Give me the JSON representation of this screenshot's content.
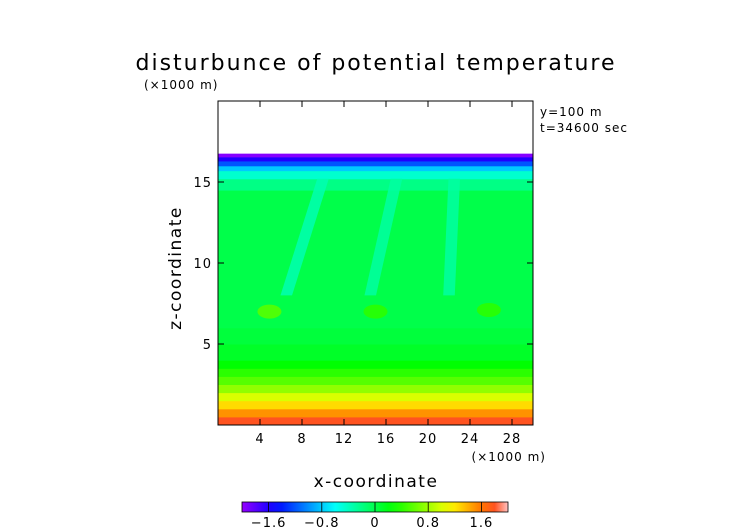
{
  "chart_data": {
    "type": "heatmap",
    "title": "disturbunce of potential temperature",
    "xlabel": "x-coordinate",
    "ylabel": "z-coordinate",
    "x_unit": "(×1000 m)",
    "y_unit": "(×1000 m)",
    "annotations": [
      "y=100 m",
      "t=34600 sec"
    ],
    "xlim": [
      0,
      30
    ],
    "ylim": [
      0,
      20
    ],
    "x_ticks": [
      4,
      8,
      12,
      16,
      20,
      24,
      28
    ],
    "y_ticks": [
      5,
      10,
      15
    ],
    "x_tick_labels": [
      "4",
      "8",
      "12",
      "16",
      "20",
      "24",
      "28"
    ],
    "y_tick_labels": [
      "5",
      "10",
      "15"
    ],
    "colorbar": {
      "range": [
        -2.0,
        2.0
      ],
      "ticks": [
        -1.6,
        -0.8,
        0,
        0.8,
        1.6
      ],
      "tick_labels": [
        "−1.6",
        "−0.8",
        "0",
        "0.8",
        "1.6"
      ]
    },
    "field_layers": [
      {
        "z_bottom": 0.0,
        "z_top": 0.5,
        "value": 1.8
      },
      {
        "z_bottom": 0.5,
        "z_top": 1.0,
        "value": 1.5
      },
      {
        "z_bottom": 1.0,
        "z_top": 1.5,
        "value": 1.25
      },
      {
        "z_bottom": 1.5,
        "z_top": 2.0,
        "value": 1.0
      },
      {
        "z_bottom": 2.0,
        "z_top": 2.5,
        "value": 0.75
      },
      {
        "z_bottom": 2.5,
        "z_top": 3.0,
        "value": 0.55
      },
      {
        "z_bottom": 3.0,
        "z_top": 3.5,
        "value": 0.4
      },
      {
        "z_bottom": 3.5,
        "z_top": 4.0,
        "value": 0.25
      },
      {
        "z_bottom": 4.0,
        "z_top": 5.0,
        "value": 0.12
      },
      {
        "z_bottom": 5.0,
        "z_top": 6.0,
        "value": 0.05
      },
      {
        "z_bottom": 6.0,
        "z_top": 14.5,
        "value": 0.0
      },
      {
        "z_bottom": 14.5,
        "z_top": 15.2,
        "value": -0.2
      },
      {
        "z_bottom": 15.2,
        "z_top": 15.7,
        "value": -0.45
      },
      {
        "z_bottom": 15.7,
        "z_top": 16.0,
        "value": -0.8
      },
      {
        "z_bottom": 16.0,
        "z_top": 16.3,
        "value": -1.2
      },
      {
        "z_bottom": 16.3,
        "z_top": 16.55,
        "value": -1.6
      },
      {
        "z_bottom": 16.55,
        "z_top": 16.75,
        "value": -1.95
      }
    ],
    "plumes": [
      {
        "x_top": 10.0,
        "x_bottom": 6.5,
        "z_top": 15.2,
        "z_bottom": 8.0,
        "value": -0.35
      },
      {
        "x_top": 17.0,
        "x_bottom": 14.5,
        "z_top": 15.2,
        "z_bottom": 8.0,
        "value": -0.3
      },
      {
        "x_top": 22.5,
        "x_bottom": 22.0,
        "z_top": 15.2,
        "z_bottom": 8.0,
        "value": -0.3
      }
    ],
    "warm_spots": [
      {
        "x": 4.9,
        "z": 7.0,
        "value": 0.55
      },
      {
        "x": 15.0,
        "z": 7.0,
        "value": 0.4
      },
      {
        "x": 25.8,
        "z": 7.1,
        "value": 0.4
      }
    ]
  }
}
